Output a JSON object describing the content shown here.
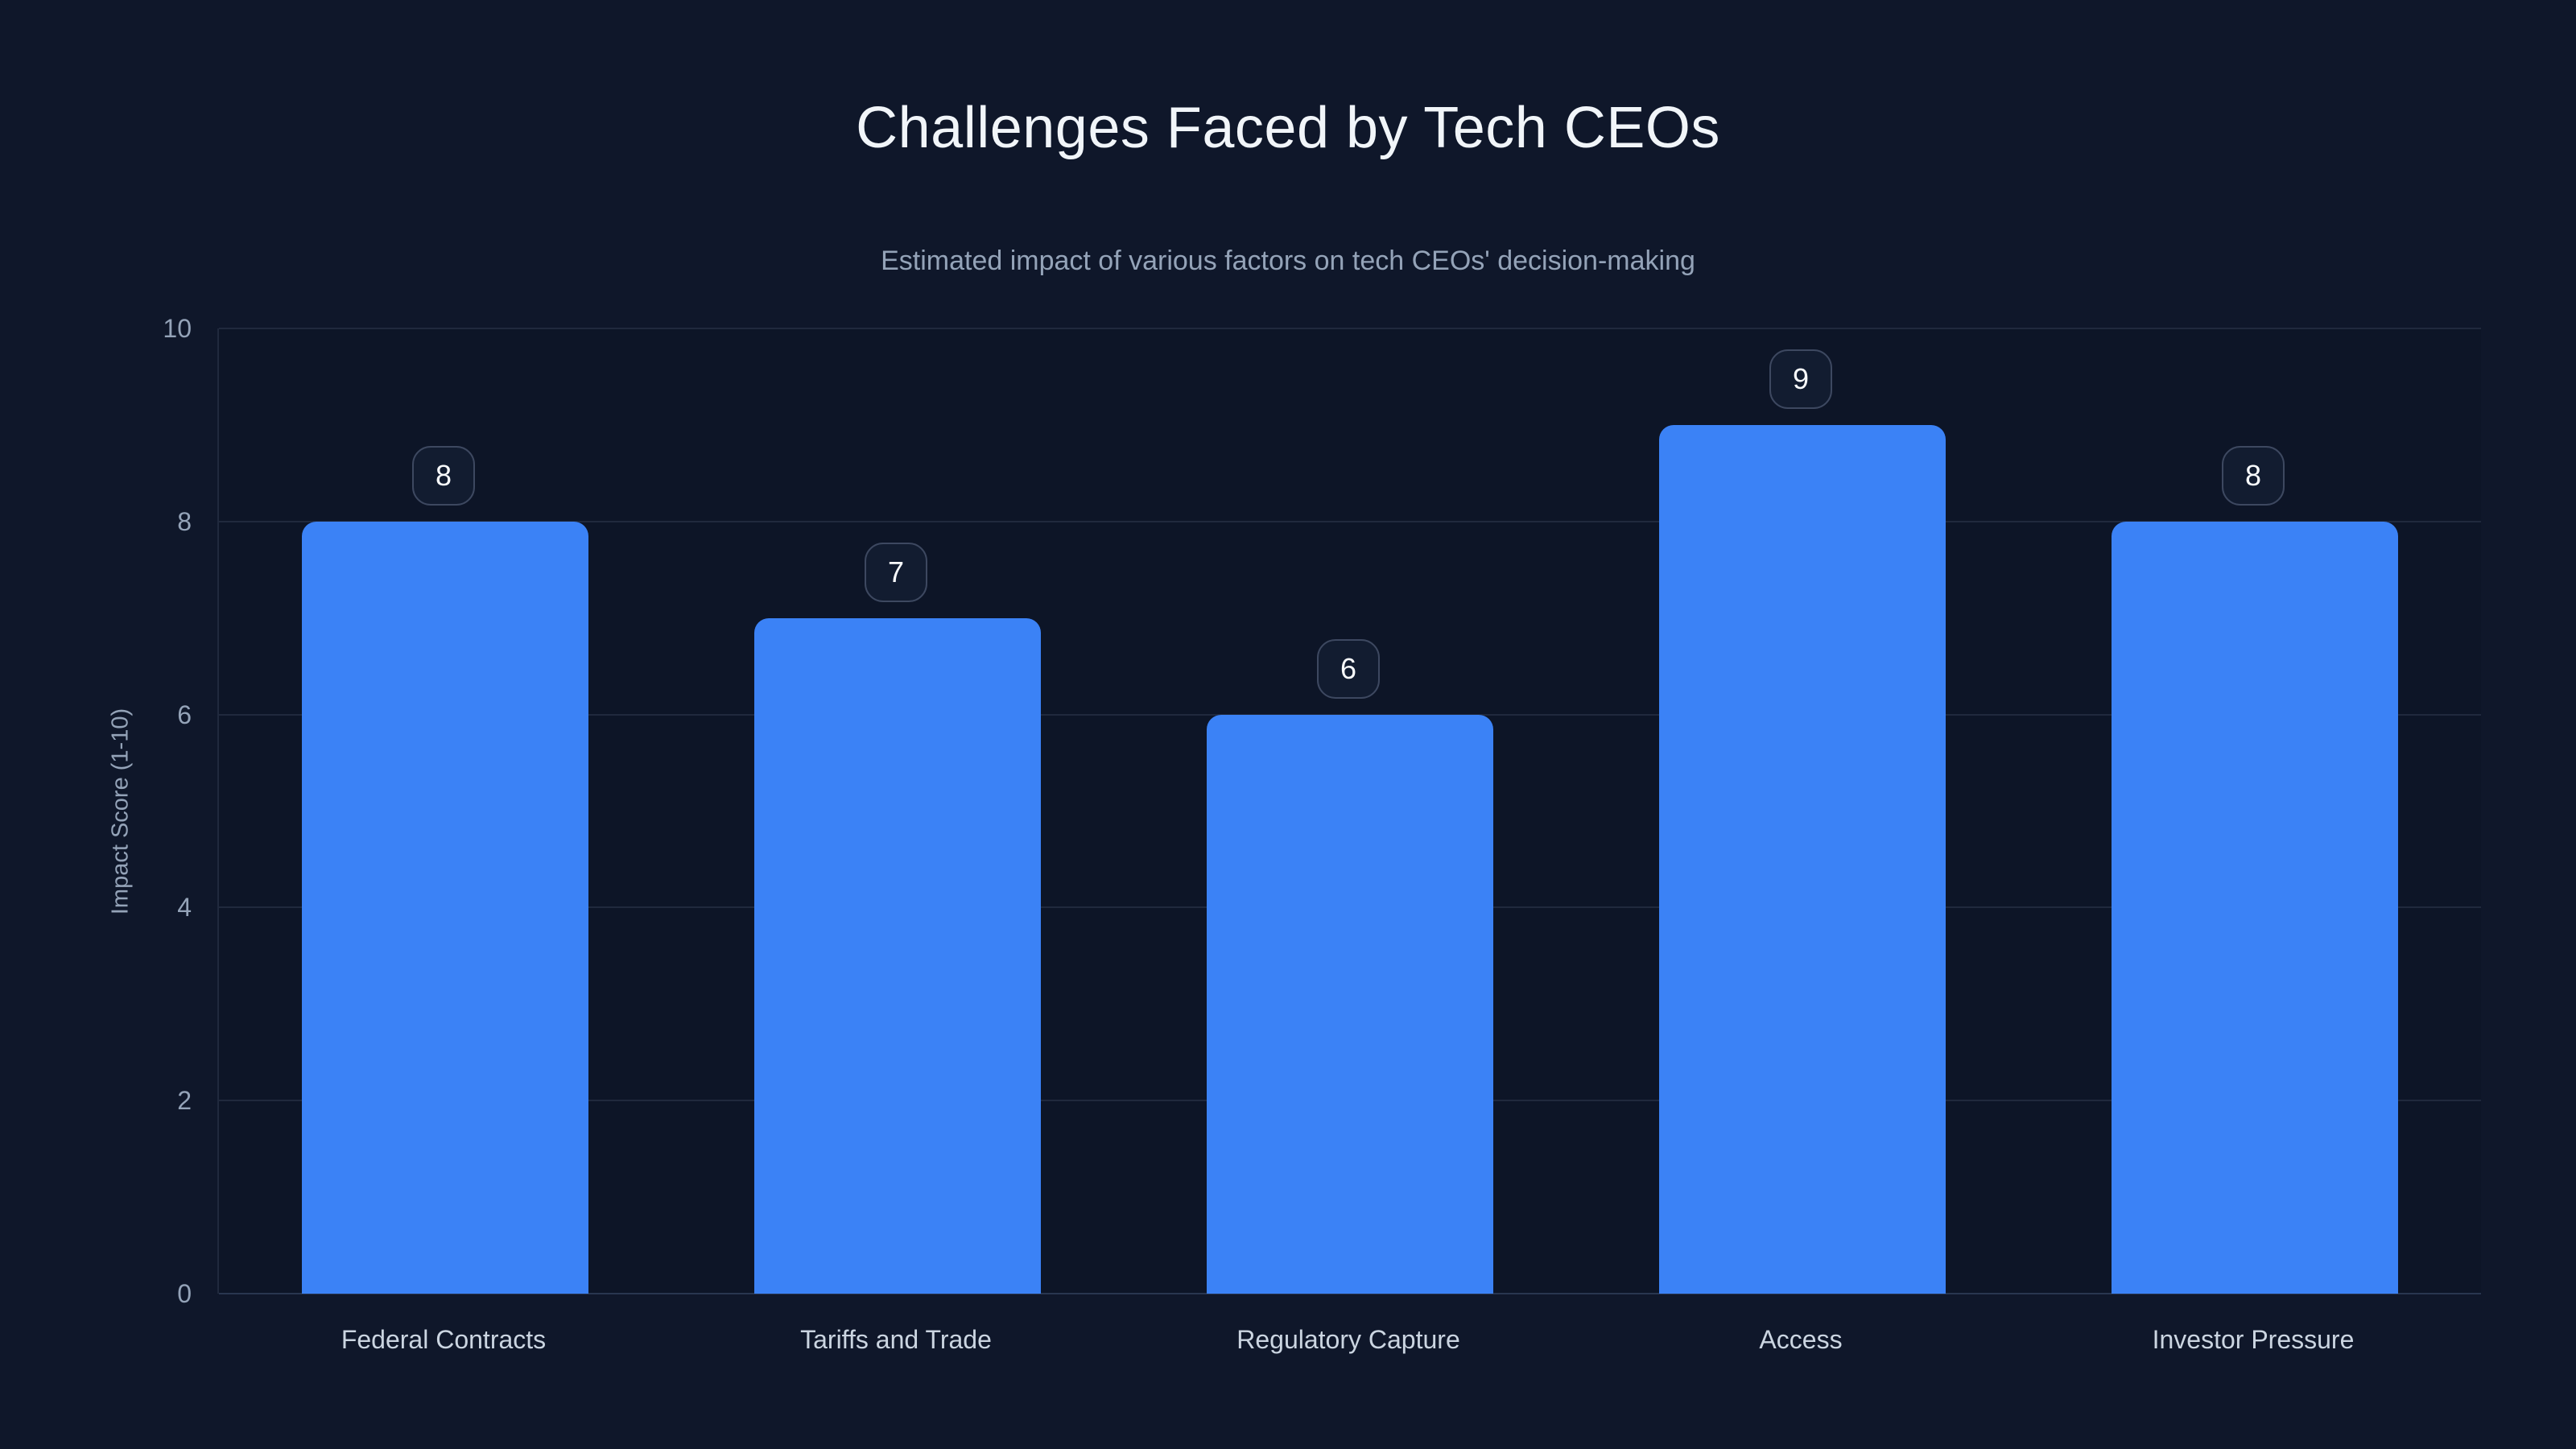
{
  "chart_data": {
    "type": "bar",
    "title": "Challenges Faced by Tech CEOs",
    "subtitle": "Estimated impact of various factors on tech CEOs' decision-making",
    "categories": [
      "Federal Contracts",
      "Tariffs and Trade",
      "Regulatory Capture",
      "Access",
      "Investor Pressure"
    ],
    "values": [
      8,
      7,
      6,
      9,
      8
    ],
    "value_labels": [
      "8",
      "7",
      "6",
      "9",
      "8"
    ],
    "xlabel": "",
    "ylabel": "Impact Score (1-10)",
    "ylim": [
      0,
      10
    ],
    "yticks": [
      0,
      2,
      4,
      6,
      8,
      10
    ],
    "grid": true,
    "legend": false
  },
  "colors": {
    "background": "#0f172a",
    "bar": "#3b82f6",
    "grid": "#20293d",
    "grid_zero": "#293650",
    "title": "#f1f5f9",
    "subtitle": "#94a3b8",
    "tick_label": "#94a3b8",
    "x_label": "#cbd5e1",
    "badge_border": "#3d4860",
    "badge_background": "#121c30",
    "badge_text": "#f8fafc"
  }
}
